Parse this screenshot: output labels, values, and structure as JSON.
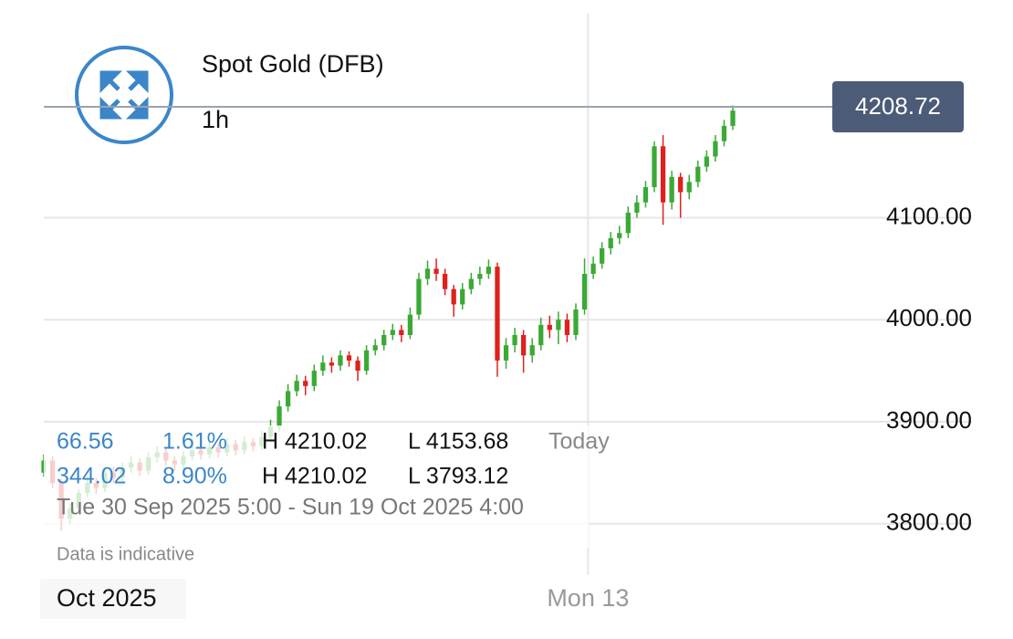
{
  "chart_data": {
    "type": "candlestick",
    "title": "Spot Gold (DFB)",
    "interval": "1h",
    "up_color": "#3aa935",
    "down_color": "#e0201c",
    "last_price": 4208.72,
    "ylim": [
      3687,
      4300
    ],
    "yticks": [
      {
        "value": 3800,
        "label": "3800.00"
      },
      {
        "value": 3900,
        "label": "3900.00"
      },
      {
        "value": 4000,
        "label": "4000.00"
      },
      {
        "value": 4100,
        "label": "4100.00"
      }
    ],
    "xlim": [
      0,
      79
    ],
    "xticks": [
      {
        "value": 0,
        "label": "Oct 2025"
      },
      {
        "value": 62.4,
        "label": "Mon 13"
      }
    ],
    "grid": true,
    "open": [
      3850,
      3862,
      3840,
      3805,
      3815,
      3830,
      3840,
      3835,
      3850,
      3845,
      3855,
      3860,
      3852,
      3865,
      3870,
      3862,
      3858,
      3866,
      3872,
      3868,
      3875,
      3870,
      3878,
      3872,
      3880,
      3876,
      3885,
      3895,
      3915,
      3930,
      3940,
      3935,
      3950,
      3958,
      3955,
      3965,
      3960,
      3950,
      3970,
      3975,
      3985,
      3990,
      3985,
      4005,
      4040,
      4050,
      4045,
      4030,
      4015,
      4030,
      4040,
      4045,
      4052,
      3960,
      3975,
      3985,
      3965,
      3975,
      3995,
      3990,
      4000,
      3985,
      4010,
      4045,
      4055,
      4070,
      4080,
      4085,
      4105,
      4115,
      4130,
      4170,
      4115,
      4140,
      4125,
      4135,
      4150,
      4160,
      4175,
      4190
    ],
    "high": [
      3868,
      3866,
      3844,
      3820,
      3834,
      3846,
      3845,
      3855,
      3856,
      3860,
      3866,
      3864,
      3870,
      3876,
      3874,
      3866,
      3871,
      3878,
      3876,
      3880,
      3879,
      3884,
      3882,
      3886,
      3884,
      3891,
      3902,
      3921,
      3937,
      3946,
      3945,
      3956,
      3965,
      3963,
      3970,
      3969,
      3964,
      3975,
      3981,
      3990,
      3996,
      3995,
      4012,
      4046,
      4058,
      4060,
      4050,
      4034,
      4036,
      4046,
      4052,
      4059,
      4056,
      3982,
      3992,
      3990,
      3982,
      4002,
      4004,
      4008,
      4006,
      4016,
      4060,
      4062,
      4076,
      4086,
      4092,
      4111,
      4122,
      4136,
      4175,
      4181,
      4146,
      4144,
      4142,
      4156,
      4166,
      4181,
      4196,
      4210
    ],
    "low": [
      3846,
      3835,
      3793,
      3800,
      3811,
      3826,
      3829,
      3831,
      3840,
      3841,
      3850,
      3847,
      3848,
      3860,
      3857,
      3852,
      3854,
      3862,
      3863,
      3864,
      3865,
      3866,
      3867,
      3868,
      3871,
      3872,
      3880,
      3890,
      3910,
      3925,
      3926,
      3930,
      3945,
      3948,
      3950,
      3954,
      3940,
      3946,
      3965,
      3970,
      3980,
      3978,
      3981,
      4000,
      4034,
      4038,
      4024,
      4003,
      4010,
      4025,
      4034,
      4040,
      3944,
      3952,
      3968,
      3948,
      3958,
      3970,
      3982,
      3976,
      3978,
      3980,
      4005,
      4040,
      4050,
      4064,
      4074,
      4080,
      4100,
      4110,
      4125,
      4093,
      4108,
      4100,
      4118,
      4130,
      4145,
      4155,
      4170,
      4186
    ],
    "close": [
      3862,
      3840,
      3805,
      3815,
      3830,
      3840,
      3835,
      3850,
      3845,
      3855,
      3860,
      3852,
      3865,
      3870,
      3862,
      3858,
      3866,
      3872,
      3868,
      3875,
      3870,
      3878,
      3872,
      3880,
      3876,
      3885,
      3895,
      3915,
      3930,
      3940,
      3935,
      3950,
      3958,
      3955,
      3965,
      3960,
      3950,
      3970,
      3975,
      3985,
      3990,
      3985,
      4005,
      4040,
      4050,
      4045,
      4030,
      4015,
      4030,
      4040,
      4045,
      4052,
      3960,
      3975,
      3985,
      3965,
      3975,
      3995,
      3990,
      4000,
      3985,
      4010,
      4045,
      4055,
      4070,
      4080,
      4085,
      4105,
      4115,
      4130,
      4170,
      4115,
      4140,
      4125,
      4135,
      4150,
      4160,
      4175,
      4190,
      4205
    ]
  },
  "info": {
    "rows": [
      [
        "66.56",
        "1.61%",
        "H 4210.02",
        "L 4153.68",
        "Today"
      ],
      [
        "344.02",
        "8.90%",
        "H 4210.02",
        "L 3793.12"
      ]
    ],
    "range": "Tue 30 Sep 2025 5:00 - Sun 19 Oct 2025 4:00",
    "note": "Data is indicative"
  }
}
